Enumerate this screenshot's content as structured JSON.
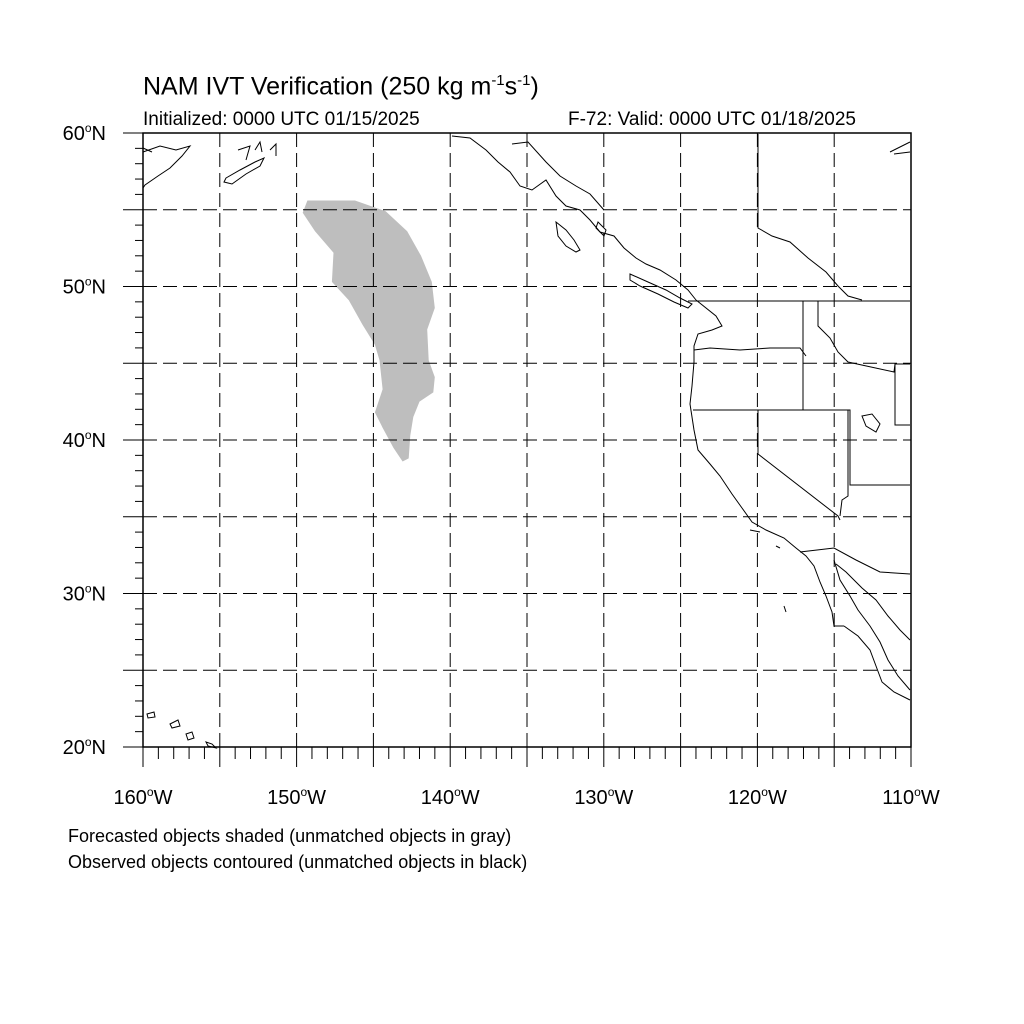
{
  "header": {
    "title": "NAM IVT Verification",
    "title_units_prefix": "(250 kg m",
    "title_exp1": "-1",
    "title_units_mid": "s",
    "title_exp2": "-1",
    "title_units_suffix": ")",
    "initialized": "Initialized: 0000 UTC 01/15/2025",
    "valid": "F-72: Valid: 0000 UTC 01/18/2025"
  },
  "map": {
    "lon_range": [
      -160,
      -110
    ],
    "lat_range": [
      20,
      60
    ],
    "lat_labels": [
      {
        "value": 60,
        "num": "60",
        "hemi": "N"
      },
      {
        "value": 50,
        "num": "50",
        "hemi": "N"
      },
      {
        "value": 40,
        "num": "40",
        "hemi": "N"
      },
      {
        "value": 30,
        "num": "30",
        "hemi": "N"
      },
      {
        "value": 20,
        "num": "20",
        "hemi": "N"
      }
    ],
    "lon_labels": [
      {
        "value": -160,
        "num": "160",
        "hemi": "W"
      },
      {
        "value": -150,
        "num": "150",
        "hemi": "W"
      },
      {
        "value": -140,
        "num": "140",
        "hemi": "W"
      },
      {
        "value": -130,
        "num": "130",
        "hemi": "W"
      },
      {
        "value": -120,
        "num": "120",
        "hemi": "W"
      },
      {
        "value": -110,
        "num": "110",
        "hemi": "W"
      }
    ],
    "gridlines": "dashed every 5 degrees",
    "colors": {
      "forecast_unmatched": "#bebebe",
      "coastline": "#000000",
      "grid": "#000000"
    },
    "forecast_objects": [
      {
        "status": "unmatched",
        "shape_lonlat": [
          [
            -149.3,
            55.6
          ],
          [
            -146.2,
            55.6
          ],
          [
            -144.2,
            54.9
          ],
          [
            -142.8,
            53.6
          ],
          [
            -141.9,
            52.0
          ],
          [
            -141.2,
            50.3
          ],
          [
            -141.0,
            48.6
          ],
          [
            -141.5,
            47.2
          ],
          [
            -141.4,
            45.2
          ],
          [
            -141.0,
            44.1
          ],
          [
            -141.1,
            43.1
          ],
          [
            -142.0,
            42.5
          ],
          [
            -142.4,
            41.5
          ],
          [
            -142.6,
            40.3
          ],
          [
            -142.7,
            38.8
          ],
          [
            -143.1,
            38.6
          ],
          [
            -143.7,
            39.5
          ],
          [
            -144.4,
            40.8
          ],
          [
            -144.9,
            41.8
          ],
          [
            -144.4,
            43.3
          ],
          [
            -144.6,
            45.2
          ],
          [
            -144.9,
            46.2
          ],
          [
            -145.7,
            47.5
          ],
          [
            -146.6,
            49.1
          ],
          [
            -147.7,
            50.3
          ],
          [
            -147.6,
            52.2
          ],
          [
            -148.8,
            53.6
          ],
          [
            -149.6,
            54.8
          ]
        ]
      }
    ]
  },
  "footer": {
    "line1": "Forecasted objects shaded (unmatched objects in gray)",
    "line2": "Observed objects contoured (unmatched objects in black)"
  }
}
